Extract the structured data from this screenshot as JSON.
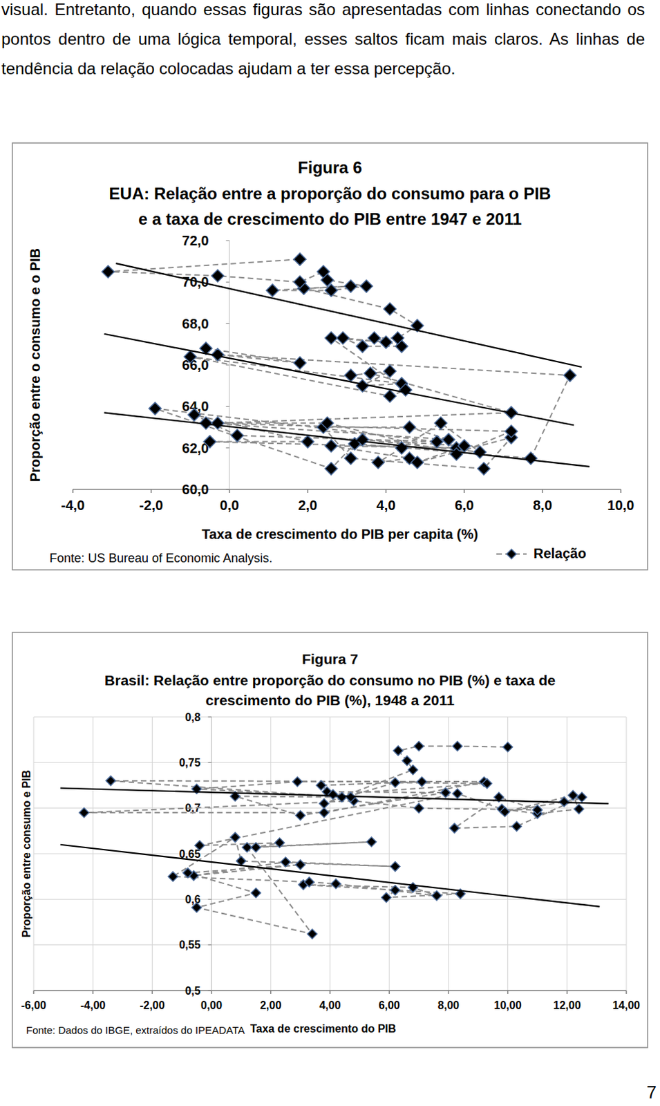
{
  "paragraph": "visual. Entretanto, quando essas figuras são apresentadas com linhas conectando os pontos dentro de uma lógica temporal, esses saltos ficam mais claros. As linhas de tendência da relação colocadas ajudam a ter essa percepção.",
  "page_number": "7",
  "chart_data": [
    {
      "type": "scatter",
      "title": "Figura 6",
      "subtitle": [
        "EUA: Relação entre a proporção do consumo para o PIB",
        "e a taxa de crescimento do PIB entre 1947 e 2011"
      ],
      "x_label": "Taxa de crescimento do PIB per capita (%)",
      "y_label": "Proporção entre o consumo e o PIB",
      "source": "Fonte: US Bureau of Economic Analysis.",
      "xlim": [
        -4,
        10
      ],
      "ylim": [
        60,
        72
      ],
      "xticks": [
        {
          "value": -4,
          "label": "-4,0"
        },
        {
          "value": -2,
          "label": "-2,0"
        },
        {
          "value": 0,
          "label": "0,0"
        },
        {
          "value": 2,
          "label": "2,0"
        },
        {
          "value": 4,
          "label": "4,0"
        },
        {
          "value": 6,
          "label": "6,0"
        },
        {
          "value": 8,
          "label": "8,0"
        },
        {
          "value": 10,
          "label": "10,0"
        }
      ],
      "yticks": [
        {
          "value": 60,
          "label": "60,0"
        },
        {
          "value": 62,
          "label": "62,0"
        },
        {
          "value": 64,
          "label": "64,0"
        },
        {
          "value": 66,
          "label": "66,0"
        },
        {
          "value": 68,
          "label": "68,0"
        },
        {
          "value": 70,
          "label": "70,0"
        },
        {
          "value": 72,
          "label": "72,0"
        }
      ],
      "grid": false,
      "legend": "bottom-right",
      "series": [
        {
          "name": "Relação",
          "type": "scatter",
          "marker": "diamond",
          "line_style": "dashed",
          "color": "#000000",
          "x": [
            -0.6,
            1.8,
            -0.3,
            8.7,
            7.7,
            3.2,
            2.6,
            -1.9,
            5.3,
            0.2,
            -0.9,
            2.0,
            -0.5,
            5.8,
            2.6,
            4.6,
            3.8,
            4.4,
            5.4,
            6.4,
            3.4,
            6.0,
            4.8,
            7.2,
            6.5,
            3.1,
            2.4,
            4.6,
            5.6,
            -0.6,
            7.2,
            5.8,
            2.5,
            -0.3,
            7.2,
            3.6,
            3.1,
            4.1,
            3.4,
            4.4,
            -1.0,
            4.1,
            4.5,
            2.6,
            4.0,
            2.9,
            3.4,
            4.4,
            3.7,
            4.3,
            4.8,
            4.1,
            1.9,
            3.1,
            1.1,
            2.6,
            3.5,
            2.5,
            2.4,
            1.8,
            -0.3,
            -3.1,
            1.8
          ],
          "values": [
            66.8,
            66.1,
            66.5,
            65.5,
            61.5,
            62.2,
            61.0,
            63.9,
            62.3,
            62.6,
            63.6,
            62.3,
            62.3,
            62.0,
            62.1,
            61.5,
            61.3,
            62.0,
            63.2,
            61.8,
            62.4,
            62.1,
            61.3,
            62.5,
            61.0,
            61.5,
            63.0,
            63.0,
            62.4,
            63.2,
            62.8,
            61.7,
            63.2,
            63.2,
            63.7,
            65.6,
            65.5,
            65.7,
            65.0,
            65.1,
            66.4,
            64.5,
            64.8,
            67.3,
            67.1,
            67.3,
            66.9,
            66.9,
            67.3,
            67.3,
            67.9,
            68.7,
            69.7,
            69.8,
            69.6,
            69.6,
            69.8,
            70.1,
            70.5,
            70.0,
            70.3,
            70.5,
            71.1
          ]
        },
        {
          "type": "line",
          "line_style": "solid",
          "color": "#000000",
          "x": [
            -2.9,
            9.0
          ],
          "values": [
            70.9,
            65.9
          ]
        },
        {
          "type": "line",
          "line_style": "solid",
          "color": "#000000",
          "x": [
            -3.2,
            8.8
          ],
          "values": [
            67.5,
            63.1
          ]
        },
        {
          "type": "line",
          "line_style": "solid",
          "color": "#000000",
          "x": [
            -3.2,
            9.2
          ],
          "values": [
            63.7,
            61.1
          ]
        }
      ]
    },
    {
      "type": "scatter",
      "title": "Figura 7",
      "subtitle": [
        "Brasil: Relação entre proporção do consumo no PIB (%) e taxa de",
        "crescimento do PIB (%), 1948 a 2011"
      ],
      "x_label": "Taxa de crescimento do PIB",
      "y_label": "Proporção entre consumo e PIB",
      "source": "Fonte: Dados do IBGE, extraídos do IPEADATA",
      "xlim": [
        -6,
        14
      ],
      "ylim": [
        0.5,
        0.8
      ],
      "xticks": [
        {
          "value": -6,
          "label": "-6,00"
        },
        {
          "value": -4,
          "label": "-4,00"
        },
        {
          "value": -2,
          "label": "-2,00"
        },
        {
          "value": 0,
          "label": "0,00"
        },
        {
          "value": 2,
          "label": "2,00"
        },
        {
          "value": 4,
          "label": "4,00"
        },
        {
          "value": 6,
          "label": "6,00"
        },
        {
          "value": 8,
          "label": "8,00"
        },
        {
          "value": 10,
          "label": "10,00"
        },
        {
          "value": 12,
          "label": "12,00"
        },
        {
          "value": 14,
          "label": "14,00"
        }
      ],
      "yticks": [
        {
          "value": 0.5,
          "label": "0,5"
        },
        {
          "value": 0.55,
          "label": "0,55"
        },
        {
          "value": 0.6,
          "label": "0,6"
        },
        {
          "value": 0.65,
          "label": "0,65"
        },
        {
          "value": 0.7,
          "label": "0,7"
        },
        {
          "value": 0.75,
          "label": "0,75"
        },
        {
          "value": 0.8,
          "label": "0,8"
        }
      ],
      "grid": true,
      "series": [
        {
          "type": "scatter",
          "marker": "diamond",
          "line_style": "dashed",
          "color": "#000000",
          "x": [
            6.2,
            5.9,
            8.4,
            3.1,
            6.8,
            7.6,
            4.2,
            3.3,
            -1.3,
            0.8,
            1.0,
            6.2,
            2.5,
            -0.6,
            3.0,
            -0.8,
            1.5,
            -0.5,
            3.4,
            1.2,
            5.4,
            1.5,
            2.3,
            -0.4,
            8.3,
            9.8,
            11.0,
            12.4,
            12.2,
            9.9,
            11.9,
            12.5,
            10.3,
            8.2,
            9.7,
            11.0,
            7.0,
            4.8,
            -4.3,
            3.8,
            9.2,
            -3.4,
            4.4,
            3.9,
            7.9,
            3.0,
            0.8,
            4.7,
            -0.5,
            2.9,
            7.1,
            3.7,
            4.1,
            9.3,
            6.2,
            3.8,
            6.8,
            6.6,
            6.3,
            7.0,
            8.3,
            10.0
          ],
          "values": [
            0.61,
            0.602,
            0.606,
            0.616,
            0.613,
            0.604,
            0.617,
            0.619,
            0.625,
            0.668,
            0.642,
            0.636,
            0.641,
            0.626,
            0.638,
            0.629,
            0.607,
            0.591,
            0.562,
            0.657,
            0.663,
            0.657,
            0.662,
            0.659,
            0.716,
            0.699,
            0.694,
            0.699,
            0.714,
            0.696,
            0.707,
            0.712,
            0.68,
            0.678,
            0.712,
            0.698,
            0.7,
            0.708,
            0.695,
            0.695,
            0.729,
            0.73,
            0.712,
            0.718,
            0.717,
            0.692,
            0.713,
            0.712,
            0.721,
            0.729,
            0.729,
            0.725,
            0.715,
            0.727,
            0.728,
            0.705,
            0.742,
            0.752,
            0.763,
            0.768,
            0.768,
            0.767
          ]
        },
        {
          "type": "line",
          "line_style": "solid",
          "color": "#000000",
          "x": [
            -5.1,
            13.4
          ],
          "values": [
            0.722,
            0.705
          ]
        },
        {
          "type": "line",
          "line_style": "solid",
          "color": "#000000",
          "x": [
            -5.1,
            13.1
          ],
          "values": [
            0.66,
            0.592
          ]
        }
      ]
    }
  ]
}
